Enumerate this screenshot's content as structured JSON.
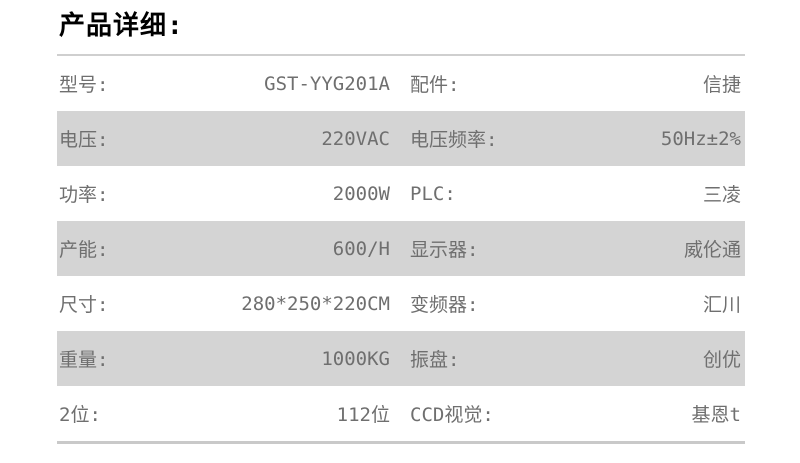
{
  "page_title": "产品详细:",
  "colors": {
    "title_text": "#000000",
    "text": "#6f6f6f",
    "row_alt_bg": "#d4d4d4",
    "top_border": "#cfcfcf",
    "bottom_border": "#c9c9c9"
  },
  "spec_table": {
    "rows": [
      {
        "label1": "型号:",
        "value1": "GST-YYG201A",
        "label2": "配件:",
        "value2": "信捷"
      },
      {
        "label1": "电压:",
        "value1": "220VAC",
        "label2": "电压频率:",
        "value2": "50Hz±2%"
      },
      {
        "label1": "功率:",
        "value1": "2000W",
        "label2": "PLC:",
        "value2": "三凌"
      },
      {
        "label1": "产能:",
        "value1": "600/H",
        "label2": "显示器:",
        "value2": "威伦通"
      },
      {
        "label1": "尺寸:",
        "value1": "280*250*220CM",
        "label2": "变频器:",
        "value2": "汇川"
      },
      {
        "label1": "重量:",
        "value1": "1000KG",
        "label2": "振盘:",
        "value2": "创优"
      },
      {
        "label1": "2位:",
        "value1": "112位",
        "label2": "CCD视觉:",
        "value2": "基恩t"
      }
    ]
  }
}
